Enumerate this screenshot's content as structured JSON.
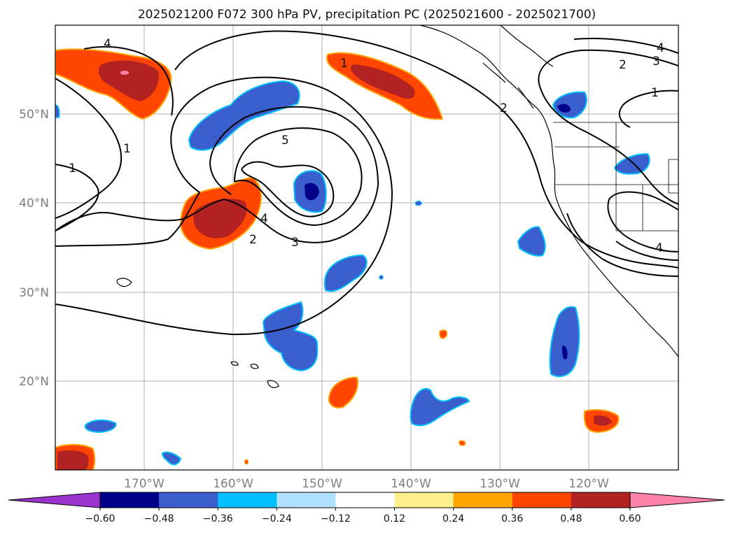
{
  "title": "2025021200 F072 300 hPa PV, precipitation PC (2025021600 - 2025021700)",
  "axes": {
    "lon_ticks": [
      "170°W",
      "160°W",
      "150°W",
      "140°W",
      "130°W",
      "120°W"
    ],
    "lat_ticks": [
      "50°N",
      "40°N",
      "30°N",
      "20°N"
    ],
    "lon_range": [
      -180,
      -110
    ],
    "lat_range": [
      10,
      60
    ]
  },
  "colorbar": {
    "ticks": [
      "−0.60",
      "−0.48",
      "−0.36",
      "−0.24",
      "−0.12",
      "0.12",
      "0.24",
      "0.36",
      "0.48",
      "0.60"
    ],
    "colors": [
      "#9a32cd",
      "#00008b",
      "#3a5fcd",
      "#00bfff",
      "#b0e2ff",
      "#ffffff",
      "#fff08c",
      "#ffa500",
      "#ff4500",
      "#b22222",
      "#ff82ab"
    ]
  },
  "contour_labels": [
    "4",
    "1",
    "1",
    "1",
    "5",
    "4",
    "2",
    "3",
    "2",
    "2",
    "3",
    "4",
    "1",
    "4"
  ],
  "chart_data": {
    "type": "map",
    "field_contours": "300 hPa PV (PVU)",
    "shading": "precipitation PC",
    "contour_levels": [
      1,
      2,
      3,
      4,
      5
    ]
  }
}
